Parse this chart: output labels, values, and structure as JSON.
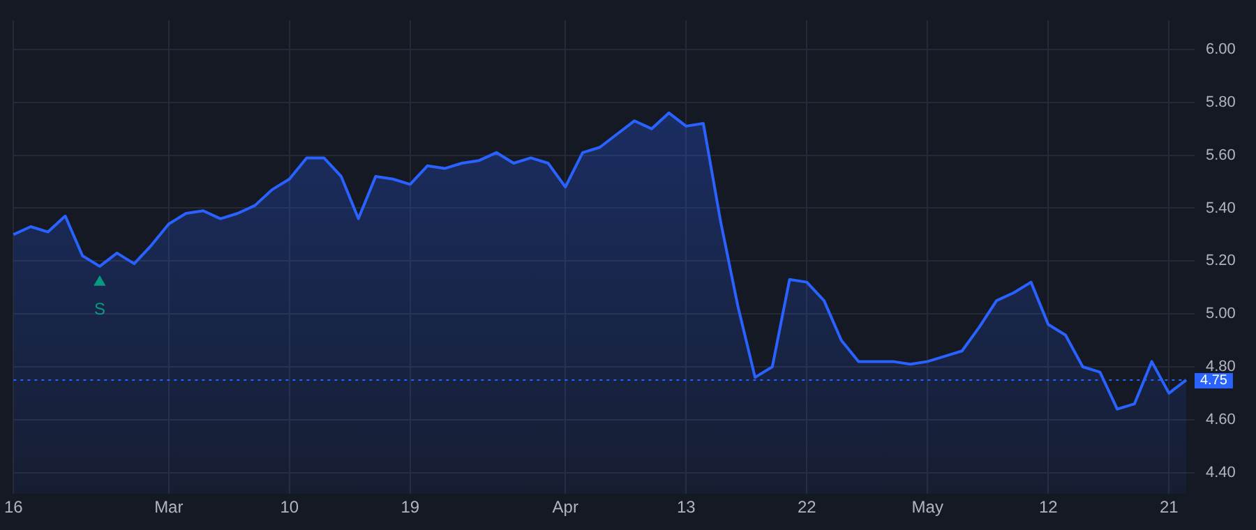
{
  "chart_data": {
    "type": "area",
    "categories": [
      "16",
      null,
      null,
      null,
      null,
      null,
      null,
      null,
      null,
      "Mar",
      null,
      null,
      null,
      null,
      null,
      null,
      "10",
      null,
      null,
      null,
      null,
      null,
      null,
      "19",
      null,
      null,
      null,
      null,
      null,
      null,
      null,
      null,
      "Apr",
      null,
      null,
      null,
      null,
      null,
      null,
      "13",
      null,
      null,
      null,
      null,
      null,
      null,
      "22",
      null,
      null,
      null,
      null,
      null,
      null,
      "May",
      null,
      null,
      null,
      null,
      null,
      null,
      "12",
      null,
      null,
      null,
      null,
      null,
      null,
      "21",
      null
    ],
    "series": [
      {
        "color": "#2962ff",
        "values": [
          5.3,
          5.33,
          5.31,
          5.37,
          5.22,
          5.18,
          5.23,
          5.19,
          5.26,
          5.34,
          5.38,
          5.39,
          5.36,
          5.38,
          5.41,
          5.47,
          5.51,
          5.59,
          5.59,
          5.52,
          5.36,
          5.52,
          5.51,
          5.49,
          5.56,
          5.55,
          5.57,
          5.58,
          5.61,
          5.57,
          5.59,
          5.57,
          5.48,
          5.61,
          5.63,
          5.68,
          5.73,
          5.7,
          5.76,
          5.71,
          5.72,
          5.35,
          5.03,
          4.76,
          4.8,
          5.13,
          5.12,
          5.05,
          4.9,
          4.82,
          4.82,
          4.82,
          4.81,
          4.82,
          4.84,
          4.86,
          4.95,
          5.05,
          5.08,
          5.12,
          4.96,
          4.92,
          4.8,
          4.78,
          4.64,
          4.66,
          4.82,
          4.7,
          4.75
        ]
      },
      {
        "type": "scatter",
        "color": "#089981",
        "marker": "triangle",
        "values": [
          null,
          null,
          null,
          null,
          null,
          5.12,
          null,
          null,
          null,
          null,
          null,
          null,
          null,
          null,
          null,
          null,
          null,
          null,
          null,
          null,
          null,
          null,
          null,
          null,
          null,
          null,
          null,
          null,
          null,
          null,
          null,
          null,
          null,
          null,
          null,
          null,
          null,
          null,
          null,
          null,
          null,
          null,
          null,
          null,
          null,
          null,
          null,
          null,
          null,
          null,
          null,
          null,
          null,
          null,
          null,
          null,
          null,
          null,
          null,
          null,
          null,
          null,
          null,
          null,
          null,
          null,
          null,
          null,
          null
        ]
      }
    ],
    "ylim": [
      4.32,
      6.11
    ],
    "yticks": [
      {
        "value": 4.4,
        "label": "4.40"
      },
      {
        "value": 4.6,
        "label": "4.60"
      },
      {
        "value": 4.8,
        "label": "4.80"
      },
      {
        "value": 5.0,
        "label": "5.00"
      },
      {
        "value": 5.2,
        "label": "5.20"
      },
      {
        "value": 5.4,
        "label": "5.40"
      },
      {
        "value": 5.6,
        "label": "5.60"
      },
      {
        "value": 5.8,
        "label": "5.80"
      },
      {
        "value": 6.0,
        "label": "6.00"
      }
    ],
    "ref_lines": [
      {
        "axis": "y",
        "value": 4.75,
        "label": "4.75",
        "color": "#2962ff",
        "line_style": "dotted"
      }
    ],
    "annotations": [
      "S"
    ],
    "grid": true,
    "legend": false,
    "marker": "none",
    "line_style": "solid"
  }
}
